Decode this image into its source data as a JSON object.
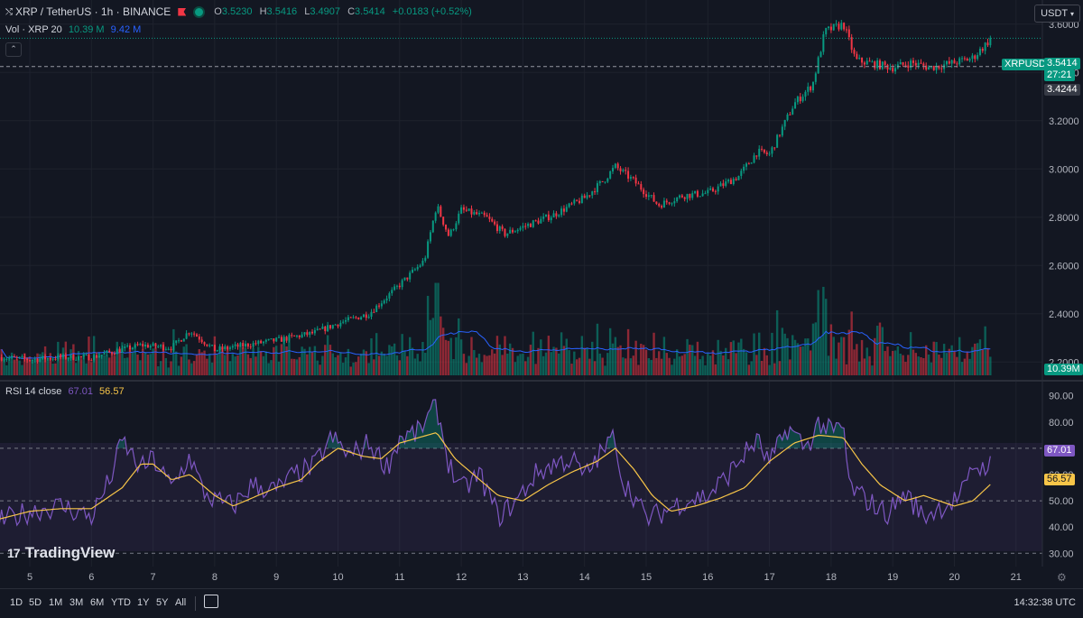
{
  "header": {
    "symbol": "XRP / TetherUS · 1h · BINANCE",
    "ohlc": [
      {
        "label": "O",
        "value": "3.5230"
      },
      {
        "label": "H",
        "value": "3.5416"
      },
      {
        "label": "L",
        "value": "3.4907"
      },
      {
        "label": "C",
        "value": "3.5414"
      }
    ],
    "change": "+0.0183 (+0.52%)"
  },
  "volume_legend": {
    "label": "Vol · XRP 20",
    "value": "10.39 M",
    "ma_value": "9.42 M"
  },
  "rsi_legend": {
    "label": "RSI 14 close",
    "value": "67.01",
    "ma_value": "56.57"
  },
  "currency_button": "USDT",
  "price_tags": {
    "symbol_tag": "XRPUSDT",
    "last_price": "3.5414",
    "countdown": "27:21",
    "crosshair_price": "3.4244",
    "volume": "10.39M",
    "rsi": "67.01",
    "rsi_ma": "56.57"
  },
  "branding": {
    "logo_text": "TradingView",
    "logo_mark": "17"
  },
  "bottom_bar": {
    "ranges": [
      "1D",
      "5D",
      "1M",
      "3M",
      "6M",
      "YTD",
      "1Y",
      "5Y",
      "All"
    ],
    "clock": "14:32:38 UTC"
  },
  "colors": {
    "up": "#089981",
    "down": "#f23645",
    "rsi": "#7e57c2",
    "rsi_ma": "#f7c548",
    "vol_ma": "#2962ff",
    "background": "#131722"
  },
  "chart_data": [
    {
      "type": "candlestick",
      "title": "XRP / TetherUS · 1h · BINANCE",
      "x_tick_labels": [
        "5",
        "6",
        "7",
        "8",
        "9",
        "10",
        "11",
        "12",
        "13",
        "14",
        "15",
        "16",
        "17",
        "18",
        "19",
        "20",
        "21"
      ],
      "y_tick_labels": [
        "2.2000",
        "2.4000",
        "2.6000",
        "2.8000",
        "3.0000",
        "3.2000",
        "3.4000",
        "3.6000"
      ],
      "ylim": [
        2.13,
        3.7
      ],
      "close_path": [
        [
          4.5,
          2.22
        ],
        [
          5.0,
          2.21
        ],
        [
          5.5,
          2.22
        ],
        [
          6.0,
          2.22
        ],
        [
          6.3,
          2.24
        ],
        [
          6.8,
          2.27
        ],
        [
          7.3,
          2.26
        ],
        [
          7.6,
          2.33
        ],
        [
          8.0,
          2.25
        ],
        [
          8.5,
          2.27
        ],
        [
          9.0,
          2.29
        ],
        [
          9.6,
          2.32
        ],
        [
          10.0,
          2.36
        ],
        [
          10.5,
          2.4
        ],
        [
          11.0,
          2.52
        ],
        [
          11.4,
          2.62
        ],
        [
          11.6,
          2.85
        ],
        [
          11.8,
          2.72
        ],
        [
          12.0,
          2.83
        ],
        [
          12.4,
          2.8
        ],
        [
          12.7,
          2.73
        ],
        [
          13.0,
          2.76
        ],
        [
          13.5,
          2.81
        ],
        [
          14.0,
          2.88
        ],
        [
          14.3,
          2.95
        ],
        [
          14.5,
          3.01
        ],
        [
          14.8,
          2.95
        ],
        [
          15.2,
          2.85
        ],
        [
          15.6,
          2.89
        ],
        [
          16.0,
          2.9
        ],
        [
          16.5,
          2.97
        ],
        [
          16.8,
          3.07
        ],
        [
          17.0,
          3.06
        ],
        [
          17.4,
          3.27
        ],
        [
          17.7,
          3.35
        ],
        [
          17.9,
          3.57
        ],
        [
          18.2,
          3.6
        ],
        [
          18.4,
          3.45
        ],
        [
          18.6,
          3.44
        ],
        [
          19.0,
          3.42
        ],
        [
          19.3,
          3.44
        ],
        [
          19.6,
          3.42
        ],
        [
          20.0,
          3.44
        ],
        [
          20.3,
          3.46
        ],
        [
          20.6,
          3.5414
        ]
      ],
      "last_price": 3.5414,
      "crosshair_price": 3.4244
    },
    {
      "type": "bar",
      "title": "Vol · XRP 20",
      "series": [
        {
          "name": "Vol",
          "peaks_m": [
            [
              11.6,
              14.5
            ],
            [
              11.55,
              9.0
            ],
            [
              17.9,
              12.0
            ],
            [
              18.0,
              8.0
            ],
            [
              7.5,
              4.5
            ],
            [
              14.5,
              6.0
            ]
          ],
          "last_m": 10.39
        },
        {
          "name": "MA 20",
          "last_m": 9.42
        }
      ]
    },
    {
      "type": "line",
      "title": "RSI 14 close",
      "y_tick_labels": [
        "30.00",
        "40.00",
        "50.00",
        "60.00",
        "70.00",
        "80.00",
        "90.00"
      ],
      "ylim": [
        27,
        93
      ],
      "bands": [
        30,
        50,
        70
      ],
      "series": [
        {
          "name": "RSI",
          "points": [
            [
              4.5,
              42
            ],
            [
              5.0,
              46
            ],
            [
              5.5,
              48
            ],
            [
              6.0,
              44
            ],
            [
              6.3,
              58
            ],
            [
              6.5,
              73
            ],
            [
              6.8,
              62
            ],
            [
              7.0,
              66
            ],
            [
              7.3,
              55
            ],
            [
              7.6,
              67
            ],
            [
              7.8,
              54
            ],
            [
              8.0,
              50
            ],
            [
              8.3,
              48
            ],
            [
              8.6,
              56
            ],
            [
              9.0,
              54
            ],
            [
              9.3,
              60
            ],
            [
              9.6,
              63
            ],
            [
              9.9,
              74
            ],
            [
              10.2,
              67
            ],
            [
              10.5,
              72
            ],
            [
              10.8,
              63
            ],
            [
              11.0,
              74
            ],
            [
              11.3,
              76
            ],
            [
              11.6,
              86
            ],
            [
              11.8,
              64
            ],
            [
              12.0,
              54
            ],
            [
              12.3,
              60
            ],
            [
              12.6,
              44
            ],
            [
              12.9,
              50
            ],
            [
              13.2,
              60
            ],
            [
              13.5,
              64
            ],
            [
              13.8,
              66
            ],
            [
              14.0,
              59
            ],
            [
              14.2,
              66
            ],
            [
              14.5,
              75
            ],
            [
              14.6,
              58
            ],
            [
              14.8,
              52
            ],
            [
              15.0,
              43
            ],
            [
              15.3,
              46
            ],
            [
              15.6,
              50
            ],
            [
              16.0,
              52
            ],
            [
              16.3,
              59
            ],
            [
              16.6,
              68
            ],
            [
              16.8,
              73
            ],
            [
              17.0,
              64
            ],
            [
              17.3,
              78
            ],
            [
              17.6,
              70
            ],
            [
              17.8,
              80
            ],
            [
              18.0,
              76
            ],
            [
              18.2,
              78
            ],
            [
              18.3,
              55
            ],
            [
              18.6,
              50
            ],
            [
              18.9,
              45
            ],
            [
              19.2,
              53
            ],
            [
              19.5,
              44
            ],
            [
              19.8,
              48
            ],
            [
              20.0,
              50
            ],
            [
              20.2,
              55
            ],
            [
              20.3,
              64
            ],
            [
              20.45,
              62
            ],
            [
              20.6,
              67.01
            ]
          ]
        },
        {
          "name": "RSI-based MA",
          "points": [
            [
              4.5,
              43
            ],
            [
              5.0,
              46
            ],
            [
              5.5,
              47
            ],
            [
              6.0,
              47
            ],
            [
              6.5,
              55
            ],
            [
              6.8,
              64
            ],
            [
              7.0,
              64
            ],
            [
              7.3,
              58
            ],
            [
              7.6,
              60
            ],
            [
              8.0,
              52
            ],
            [
              8.3,
              48
            ],
            [
              8.7,
              52
            ],
            [
              9.0,
              55
            ],
            [
              9.4,
              58
            ],
            [
              9.7,
              65
            ],
            [
              10.0,
              70
            ],
            [
              10.4,
              67
            ],
            [
              10.7,
              66
            ],
            [
              11.0,
              72
            ],
            [
              11.3,
              74
            ],
            [
              11.6,
              76
            ],
            [
              11.9,
              66
            ],
            [
              12.2,
              60
            ],
            [
              12.6,
              52
            ],
            [
              13.0,
              50
            ],
            [
              13.4,
              56
            ],
            [
              13.8,
              61
            ],
            [
              14.2,
              65
            ],
            [
              14.5,
              70
            ],
            [
              14.8,
              62
            ],
            [
              15.1,
              52
            ],
            [
              15.4,
              46
            ],
            [
              15.8,
              48
            ],
            [
              16.2,
              51
            ],
            [
              16.6,
              55
            ],
            [
              17.0,
              65
            ],
            [
              17.4,
              72
            ],
            [
              17.8,
              75
            ],
            [
              18.2,
              74
            ],
            [
              18.5,
              64
            ],
            [
              18.8,
              56
            ],
            [
              19.2,
              50
            ],
            [
              19.5,
              52
            ],
            [
              20.0,
              48
            ],
            [
              20.3,
              50
            ],
            [
              20.6,
              56.57
            ]
          ]
        }
      ]
    }
  ]
}
